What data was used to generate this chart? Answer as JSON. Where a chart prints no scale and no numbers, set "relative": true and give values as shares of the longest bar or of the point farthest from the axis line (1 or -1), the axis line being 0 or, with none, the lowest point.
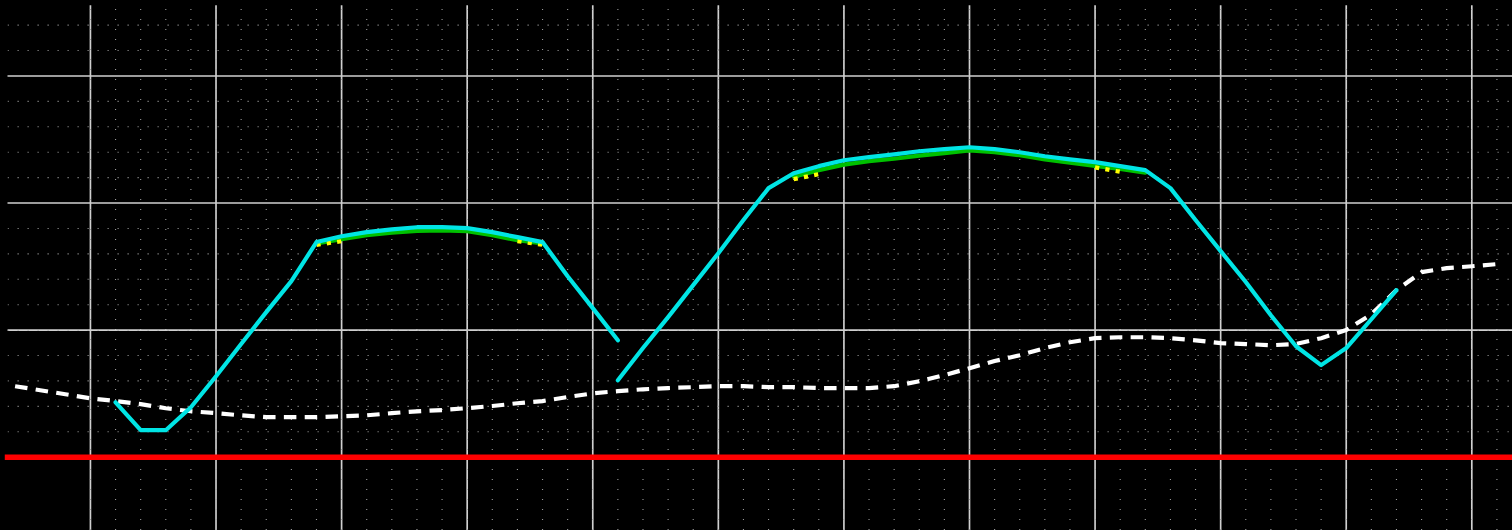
{
  "chart_data": {
    "type": "line",
    "relative": true,
    "grid": true,
    "categories": [
      null,
      null,
      null,
      null,
      null,
      null,
      null,
      null,
      null,
      null,
      null,
      null,
      null,
      null,
      null,
      null,
      null,
      null,
      null,
      null,
      null,
      null,
      null,
      null,
      null,
      null,
      null,
      null,
      null,
      null,
      null,
      null,
      null,
      null,
      null,
      null,
      null,
      null,
      null,
      null,
      null,
      null,
      null,
      null,
      null,
      null,
      null,
      null,
      null,
      null,
      null,
      null,
      null,
      null,
      null,
      null,
      null,
      null,
      null,
      null
    ],
    "series": [
      {
        "color": "#ffffff",
        "line_style": "dashed",
        "values": [
          0.229,
          0.216,
          0.203,
          0.19,
          0.181,
          0.171,
          0.158,
          0.148,
          0.142,
          0.135,
          0.129,
          0.129,
          0.129,
          0.132,
          0.135,
          0.142,
          0.148,
          0.152,
          0.158,
          0.165,
          0.174,
          0.181,
          0.194,
          0.206,
          0.213,
          0.219,
          0.223,
          0.226,
          0.229,
          0.229,
          0.226,
          0.226,
          0.223,
          0.223,
          0.223,
          0.229,
          0.245,
          0.265,
          0.287,
          0.31,
          0.329,
          0.352,
          0.371,
          0.384,
          0.387,
          0.387,
          0.384,
          0.377,
          0.368,
          0.365,
          0.361,
          0.365,
          0.384,
          0.41,
          0.461,
          0.539,
          0.597,
          0.61,
          0.616,
          0.623
        ]
      },
      {
        "color": "#00c000",
        "line_style": "solid",
        "values": [
          null,
          null,
          null,
          null,
          null,
          null,
          null,
          null,
          null,
          null,
          null,
          null,
          0.69,
          0.703,
          0.716,
          0.724,
          0.73,
          0.732,
          0.729,
          0.716,
          0.7,
          0.69,
          null,
          null,
          null,
          null,
          null,
          null,
          null,
          null,
          null,
          0.905,
          0.926,
          0.944,
          0.955,
          0.963,
          0.973,
          0.981,
          0.99,
          0.984,
          0.974,
          0.961,
          0.95,
          0.94,
          0.93,
          0.918,
          null,
          null,
          null,
          null,
          null,
          null,
          null,
          null,
          null,
          null,
          null,
          null,
          null,
          null
        ]
      },
      {
        "color": "#ffff00",
        "line_style": "dotted",
        "values": [
          null,
          null,
          null,
          null,
          null,
          null,
          null,
          null,
          null,
          null,
          null,
          null,
          0.685,
          0.697,
          null,
          null,
          null,
          null,
          null,
          null,
          0.697,
          0.685,
          null,
          null,
          null,
          null,
          null,
          null,
          null,
          null,
          null,
          0.897,
          0.913,
          null,
          null,
          null,
          null,
          null,
          null,
          null,
          null,
          null,
          null,
          0.935,
          0.921,
          null,
          null,
          null,
          null,
          null,
          null,
          null,
          null,
          null,
          null,
          null,
          null,
          null,
          null,
          null
        ]
      },
      {
        "color": "#00e5e5",
        "line_style": "solid",
        "values": [
          null,
          null,
          null,
          null,
          0.177,
          0.087,
          0.087,
          0.161,
          0.261,
          0.365,
          0.468,
          0.568,
          0.694,
          0.713,
          0.726,
          0.735,
          0.742,
          0.742,
          0.739,
          0.726,
          0.71,
          0.694,
          0.584,
          0.481,
          0.377,
          null,
          null,
          null,
          null,
          null,
          null,
          null,
          null,
          null,
          null,
          null,
          null,
          null,
          null,
          null,
          null,
          null,
          null,
          null,
          null,
          null,
          null,
          null,
          null,
          null,
          null,
          null,
          null,
          null,
          null,
          null,
          null,
          null,
          null,
          null
        ]
      },
      {
        "color": "#00e5e5",
        "line_style": "solid",
        "values": [
          null,
          null,
          null,
          null,
          null,
          null,
          null,
          null,
          null,
          null,
          null,
          null,
          null,
          null,
          null,
          null,
          null,
          null,
          null,
          null,
          null,
          null,
          null,
          null,
          0.248,
          0.352,
          0.452,
          0.555,
          0.658,
          0.765,
          0.868,
          0.916,
          0.939,
          0.958,
          0.968,
          0.977,
          0.987,
          0.994,
          1.0,
          0.994,
          0.984,
          0.971,
          0.961,
          0.952,
          0.939,
          0.926,
          0.868,
          0.765,
          0.665,
          0.565,
          0.458,
          0.358,
          0.297,
          0.352,
          0.445,
          0.539,
          null,
          null,
          null,
          null
        ]
      }
    ]
  }
}
